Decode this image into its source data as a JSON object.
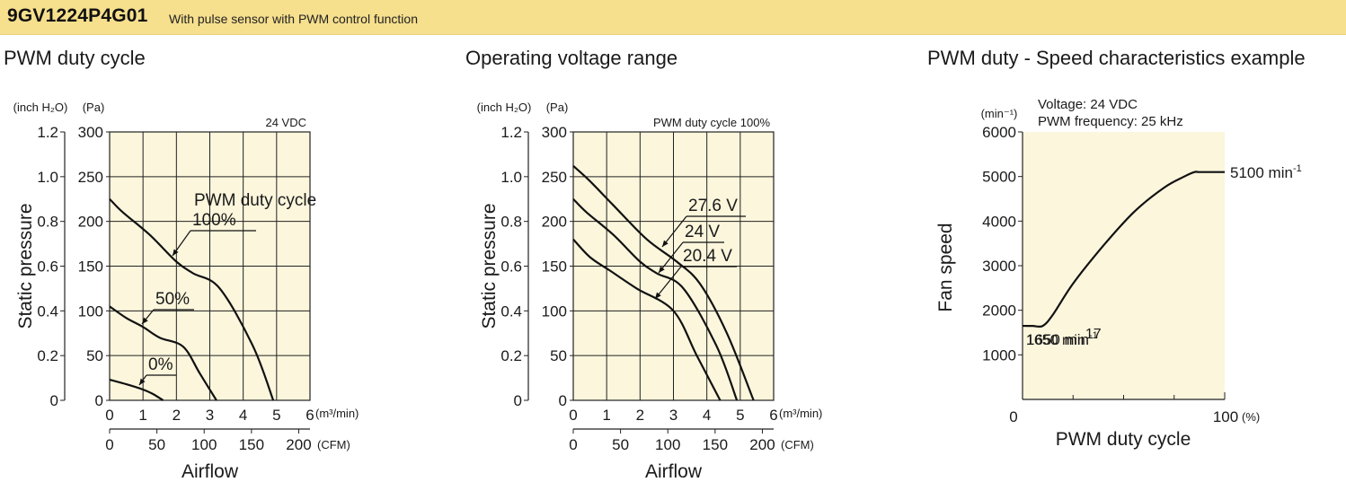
{
  "header": {
    "model": "9GV1224P4G01",
    "description": "With pulse sensor with PWM control function"
  },
  "colors": {
    "banner": "#f6df8d",
    "plot_bg": "#fbf6dc",
    "curve": "#111111"
  },
  "chart_data": [
    {
      "type": "line",
      "title": "PWM duty cycle",
      "condition": "24 VDC",
      "xlabel": "Airflow",
      "ylabel": "Static pressure",
      "x_unit": "(m³/min)",
      "x2_unit": "(CFM)",
      "y_unit": "(Pa)",
      "y2_unit": "(inch H₂O)",
      "xlim": [
        0,
        6
      ],
      "ylim": [
        0,
        300
      ],
      "x_ticks": [
        "0",
        "1",
        "2",
        "3",
        "4",
        "5",
        "6"
      ],
      "x2_ticks": [
        "0",
        "50",
        "100",
        "150",
        "200"
      ],
      "y_ticks": [
        "0",
        "50",
        "100",
        "150",
        "200",
        "250",
        "300"
      ],
      "y2_ticks": [
        "0",
        "0.2",
        "0.4",
        "0.6",
        "0.8",
        "1.0",
        "1.2"
      ],
      "legend_title": "PWM duty cycle",
      "series": [
        {
          "name": "100%",
          "x": [
            0,
            0.4,
            1.2,
            2.0,
            2.5,
            3.3,
            4.3,
            4.9
          ],
          "y": [
            225,
            210,
            185,
            155,
            142,
            125,
            60,
            0
          ]
        },
        {
          "name": "50%",
          "x": [
            0,
            0.5,
            1.0,
            1.5,
            2.2,
            2.7,
            3.2
          ],
          "y": [
            105,
            92,
            82,
            70,
            60,
            30,
            0
          ]
        },
        {
          "name": "0%",
          "x": [
            0,
            0.5,
            1.0,
            1.3,
            1.6
          ],
          "y": [
            23,
            18,
            12,
            7,
            0
          ]
        }
      ]
    },
    {
      "type": "line",
      "title": "Operating voltage range",
      "condition": "PWM duty cycle 100%",
      "xlabel": "Airflow",
      "ylabel": "Static pressure",
      "x_unit": "(m³/min)",
      "x2_unit": "(CFM)",
      "y_unit": "(Pa)",
      "y2_unit": "(inch H₂O)",
      "xlim": [
        0,
        6
      ],
      "ylim": [
        0,
        300
      ],
      "x_ticks": [
        "0",
        "1",
        "2",
        "3",
        "4",
        "5",
        "6"
      ],
      "x2_ticks": [
        "0",
        "50",
        "100",
        "150",
        "200"
      ],
      "y_ticks": [
        "0",
        "50",
        "100",
        "150",
        "200",
        "250",
        "300"
      ],
      "y2_ticks": [
        "0",
        "0.2",
        "0.4",
        "0.6",
        "0.8",
        "1.0",
        "1.2"
      ],
      "series": [
        {
          "name": "27.6 V",
          "x": [
            0,
            0.5,
            1.2,
            2.2,
            3.1,
            3.8,
            4.6,
            5.4
          ],
          "y": [
            262,
            245,
            218,
            180,
            155,
            130,
            75,
            0
          ]
        },
        {
          "name": "24 V",
          "x": [
            0,
            0.4,
            1.2,
            2.0,
            2.5,
            3.3,
            4.3,
            4.9
          ],
          "y": [
            225,
            210,
            185,
            155,
            142,
            125,
            60,
            0
          ]
        },
        {
          "name": "20.4 V",
          "x": [
            0,
            0.5,
            1.1,
            1.9,
            3.0,
            3.7,
            4.4
          ],
          "y": [
            180,
            160,
            145,
            125,
            100,
            50,
            0
          ]
        }
      ]
    },
    {
      "type": "line",
      "title": "PWM duty - Speed characteristics example",
      "notes": [
        "Voltage: 24 VDC",
        "PWM frequency: 25 kHz"
      ],
      "xlabel": "PWM duty cycle",
      "ylabel": "Fan speed",
      "x_unit": "(%)",
      "y_unit": "(min⁻¹)",
      "xlim": [
        0,
        100
      ],
      "ylim": [
        0,
        6000
      ],
      "x_ticks": [
        "0",
        "100"
      ],
      "y_ticks": [
        "1000",
        "2000",
        "3000",
        "4000",
        "5000",
        "6000"
      ],
      "series": [
        {
          "name": "",
          "x": [
            0,
            5,
            10,
            15,
            25,
            40,
            55,
            70,
            80,
            85,
            87,
            90,
            100
          ],
          "y": [
            1650,
            1650,
            1650,
            1900,
            2600,
            3450,
            4200,
            4750,
            5000,
            5100,
            5100,
            5100,
            5100
          ]
        }
      ],
      "annotations": [
        {
          "text": "1650 min",
          "sup": "-1"
        },
        {
          "text": "5100 min",
          "sup": "-1"
        }
      ]
    }
  ]
}
